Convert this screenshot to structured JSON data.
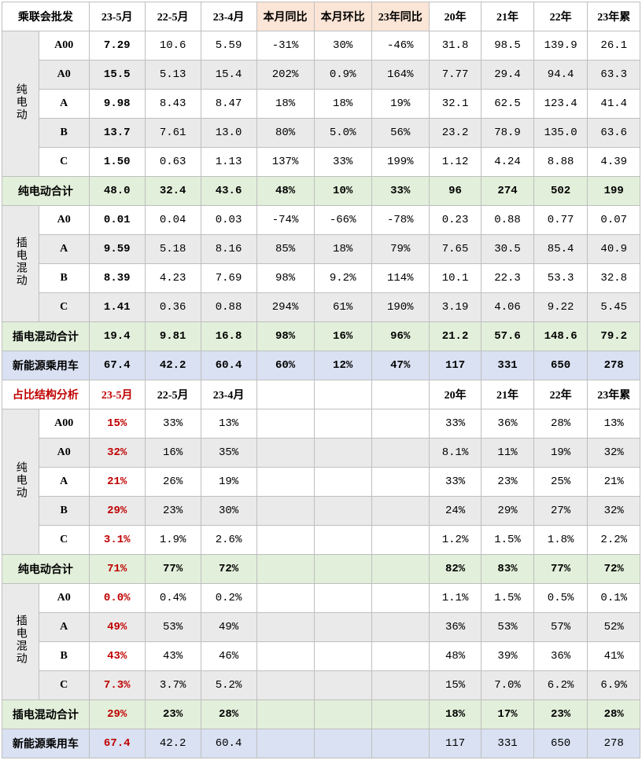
{
  "colors": {
    "border": "#bfbfbf",
    "bg_grey": "#eaeaea",
    "bg_white": "#ffffff",
    "bg_green": "#e2efda",
    "bg_blue": "#d9e1f2",
    "bg_peach": "#fbe5d6",
    "text_red": "#c00000"
  },
  "font_family": "SimSun",
  "font_size_pt": 11,
  "header1": {
    "c0": "乘联会批发",
    "c1": "23-5月",
    "c2": "22-5月",
    "c3": "23-4月",
    "c4": "本月同比",
    "c5": "本月环比",
    "c6": "23年同比",
    "c7": "20年",
    "c8": "21年",
    "c9": "22年",
    "c10": "23年累"
  },
  "groups": {
    "bev": "纯电动",
    "phev": "插电混动"
  },
  "bev_rows": [
    {
      "seg": "A00",
      "c1": "7.29",
      "c2": "10.6",
      "c3": "5.59",
      "c4": "-31%",
      "c5": "30%",
      "c6": "-46%",
      "c7": "31.8",
      "c8": "98.5",
      "c9": "139.9",
      "c10": "26.1",
      "bg": "bg-white"
    },
    {
      "seg": "A0",
      "c1": "15.5",
      "c2": "5.13",
      "c3": "15.4",
      "c4": "202%",
      "c5": "0.9%",
      "c6": "164%",
      "c7": "7.77",
      "c8": "29.4",
      "c9": "94.4",
      "c10": "63.3",
      "bg": "bg-grey"
    },
    {
      "seg": "A",
      "c1": "9.98",
      "c2": "8.43",
      "c3": "8.47",
      "c4": "18%",
      "c5": "18%",
      "c6": "19%",
      "c7": "32.1",
      "c8": "62.5",
      "c9": "123.4",
      "c10": "41.4",
      "bg": "bg-white"
    },
    {
      "seg": "B",
      "c1": "13.7",
      "c2": "7.61",
      "c3": "13.0",
      "c4": "80%",
      "c5": "5.0%",
      "c6": "56%",
      "c7": "23.2",
      "c8": "78.9",
      "c9": "135.0",
      "c10": "63.6",
      "bg": "bg-grey"
    },
    {
      "seg": "C",
      "c1": "1.50",
      "c2": "0.63",
      "c3": "1.13",
      "c4": "137%",
      "c5": "33%",
      "c6": "199%",
      "c7": "1.12",
      "c8": "4.24",
      "c9": "8.88",
      "c10": "4.39",
      "bg": "bg-white"
    }
  ],
  "bev_total": {
    "label": "纯电动合计",
    "c1": "48.0",
    "c2": "32.4",
    "c3": "43.6",
    "c4": "48%",
    "c5": "10%",
    "c6": "33%",
    "c7": "96",
    "c8": "274",
    "c9": "502",
    "c10": "199"
  },
  "phev_rows": [
    {
      "seg": "A0",
      "c1": "0.01",
      "c2": "0.04",
      "c3": "0.03",
      "c4": "-74%",
      "c5": "-66%",
      "c6": "-78%",
      "c7": "0.23",
      "c8": "0.88",
      "c9": "0.77",
      "c10": "0.07",
      "bg": "bg-white"
    },
    {
      "seg": "A",
      "c1": "9.59",
      "c2": "5.18",
      "c3": "8.16",
      "c4": "85%",
      "c5": "18%",
      "c6": "79%",
      "c7": "7.65",
      "c8": "30.5",
      "c9": "85.4",
      "c10": "40.9",
      "bg": "bg-grey"
    },
    {
      "seg": "B",
      "c1": "8.39",
      "c2": "4.23",
      "c3": "7.69",
      "c4": "98%",
      "c5": "9.2%",
      "c6": "114%",
      "c7": "10.1",
      "c8": "22.3",
      "c9": "53.3",
      "c10": "32.8",
      "bg": "bg-white"
    },
    {
      "seg": "C",
      "c1": "1.41",
      "c2": "0.36",
      "c3": "0.88",
      "c4": "294%",
      "c5": "61%",
      "c6": "190%",
      "c7": "3.19",
      "c8": "4.06",
      "c9": "9.22",
      "c10": "5.45",
      "bg": "bg-grey"
    }
  ],
  "phev_total": {
    "label": "插电混动合计",
    "c1": "19.4",
    "c2": "9.81",
    "c3": "16.8",
    "c4": "98%",
    "c5": "16%",
    "c6": "96%",
    "c7": "21.2",
    "c8": "57.6",
    "c9": "148.6",
    "c10": "79.2"
  },
  "nev_total": {
    "label": "新能源乘用车",
    "c1": "67.4",
    "c2": "42.2",
    "c3": "60.4",
    "c4": "60%",
    "c5": "12%",
    "c6": "47%",
    "c7": "117",
    "c8": "331",
    "c9": "650",
    "c10": "278"
  },
  "header2": {
    "c0": "占比结构分析",
    "c1": "23-5月",
    "c2": "22-5月",
    "c3": "23-4月",
    "c7": "20年",
    "c8": "21年",
    "c9": "22年",
    "c10": "23年累"
  },
  "s_bev_rows": [
    {
      "seg": "A00",
      "c1": "15%",
      "c2": "33%",
      "c3": "13%",
      "c7": "33%",
      "c8": "36%",
      "c9": "28%",
      "c10": "13%",
      "bg": "bg-white"
    },
    {
      "seg": "A0",
      "c1": "32%",
      "c2": "16%",
      "c3": "35%",
      "c7": "8.1%",
      "c8": "11%",
      "c9": "19%",
      "c10": "32%",
      "bg": "bg-grey"
    },
    {
      "seg": "A",
      "c1": "21%",
      "c2": "26%",
      "c3": "19%",
      "c7": "33%",
      "c8": "23%",
      "c9": "25%",
      "c10": "21%",
      "bg": "bg-white"
    },
    {
      "seg": "B",
      "c1": "29%",
      "c2": "23%",
      "c3": "30%",
      "c7": "24%",
      "c8": "29%",
      "c9": "27%",
      "c10": "32%",
      "bg": "bg-grey"
    },
    {
      "seg": "C",
      "c1": "3.1%",
      "c2": "1.9%",
      "c3": "2.6%",
      "c7": "1.2%",
      "c8": "1.5%",
      "c9": "1.8%",
      "c10": "2.2%",
      "bg": "bg-white"
    }
  ],
  "s_bev_total": {
    "label": "纯电动合计",
    "c1": "71%",
    "c2": "77%",
    "c3": "72%",
    "c7": "82%",
    "c8": "83%",
    "c9": "77%",
    "c10": "72%"
  },
  "s_phev_rows": [
    {
      "seg": "A0",
      "c1": "0.0%",
      "c2": "0.4%",
      "c3": "0.2%",
      "c7": "1.1%",
      "c8": "1.5%",
      "c9": "0.5%",
      "c10": "0.1%",
      "bg": "bg-white"
    },
    {
      "seg": "A",
      "c1": "49%",
      "c2": "53%",
      "c3": "49%",
      "c7": "36%",
      "c8": "53%",
      "c9": "57%",
      "c10": "52%",
      "bg": "bg-grey"
    },
    {
      "seg": "B",
      "c1": "43%",
      "c2": "43%",
      "c3": "46%",
      "c7": "48%",
      "c8": "39%",
      "c9": "36%",
      "c10": "41%",
      "bg": "bg-white"
    },
    {
      "seg": "C",
      "c1": "7.3%",
      "c2": "3.7%",
      "c3": "5.2%",
      "c7": "15%",
      "c8": "7.0%",
      "c9": "6.2%",
      "c10": "6.9%",
      "bg": "bg-grey"
    }
  ],
  "s_phev_total": {
    "label": "插电混动合计",
    "c1": "29%",
    "c2": "23%",
    "c3": "28%",
    "c7": "18%",
    "c8": "17%",
    "c9": "23%",
    "c10": "28%"
  },
  "s_nev_total": {
    "label": "新能源乘用车",
    "c1": "67.4",
    "c2": "42.2",
    "c3": "60.4",
    "c7": "117",
    "c8": "331",
    "c9": "650",
    "c10": "278"
  }
}
